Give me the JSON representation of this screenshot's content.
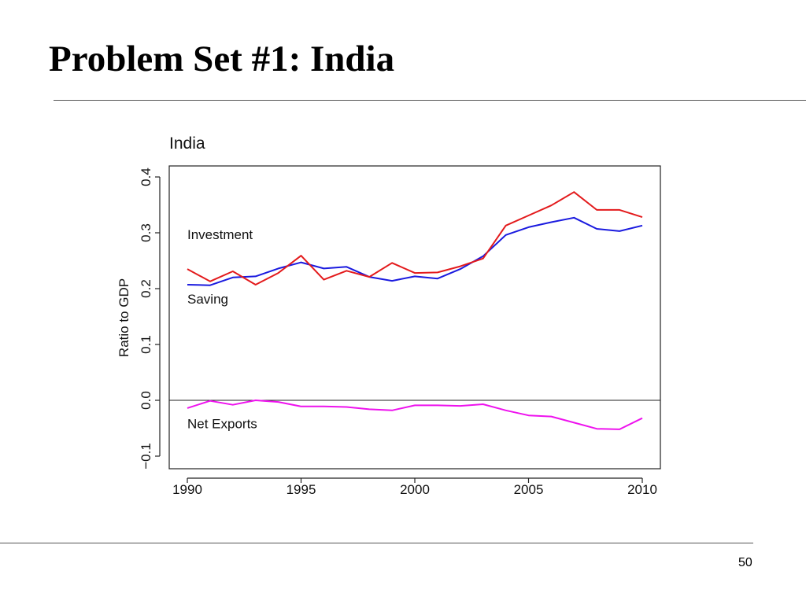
{
  "slide": {
    "title": "Problem Set #1:  India",
    "page_number": "50"
  },
  "colors": {
    "saving": "#1a1adf",
    "investment": "#e31a1c",
    "net_exports": "#ee12ee",
    "axis": "#222222"
  },
  "chart_data": {
    "type": "line",
    "title": "India",
    "xlabel": "",
    "ylabel": "Ratio to GDP",
    "xlim": [
      1990,
      2010
    ],
    "ylim": [
      -0.1,
      0.4
    ],
    "x_ticks": [
      1990,
      1995,
      2000,
      2005,
      2010
    ],
    "x_tick_labels": [
      "1990",
      "1995",
      "2000",
      "2005",
      "2010"
    ],
    "y_ticks": [
      -0.1,
      0.0,
      0.1,
      0.2,
      0.3,
      0.4
    ],
    "y_tick_labels": [
      "−0.1",
      "0.0",
      "0.1",
      "0.2",
      "0.3",
      "0.4"
    ],
    "reference_line_y": 0.0,
    "grid": false,
    "x": [
      1990,
      1991,
      1992,
      1993,
      1994,
      1995,
      1996,
      1997,
      1998,
      1999,
      2000,
      2001,
      2002,
      2003,
      2004,
      2005,
      2006,
      2007,
      2008,
      2009,
      2010
    ],
    "series": [
      {
        "name": "Saving",
        "color": "#1a1adf",
        "values": [
          0.207,
          0.206,
          0.22,
          0.222,
          0.236,
          0.247,
          0.236,
          0.239,
          0.221,
          0.214,
          0.222,
          0.218,
          0.235,
          0.258,
          0.296,
          0.31,
          0.319,
          0.327,
          0.307,
          0.303,
          0.313
        ]
      },
      {
        "name": "Investment",
        "color": "#e31a1c",
        "values": [
          0.235,
          0.213,
          0.231,
          0.207,
          0.228,
          0.259,
          0.216,
          0.232,
          0.221,
          0.246,
          0.228,
          0.229,
          0.24,
          0.254,
          0.313,
          0.331,
          0.349,
          0.373,
          0.341,
          0.341,
          0.328
        ]
      },
      {
        "name": "Net Exports",
        "color": "#ee12ee",
        "values": [
          -0.014,
          -0.001,
          -0.008,
          0.0,
          -0.003,
          -0.011,
          -0.011,
          -0.012,
          -0.016,
          -0.018,
          -0.009,
          -0.009,
          -0.01,
          -0.007,
          -0.018,
          -0.027,
          -0.029,
          -0.04,
          -0.051,
          -0.052,
          -0.032
        ]
      }
    ],
    "annotations": [
      {
        "text": "Investment",
        "x": 1990,
        "y": 0.289
      },
      {
        "text": "Saving",
        "x": 1990,
        "y": 0.173
      },
      {
        "text": "Net Exports",
        "x": 1990,
        "y": -0.05
      }
    ]
  }
}
